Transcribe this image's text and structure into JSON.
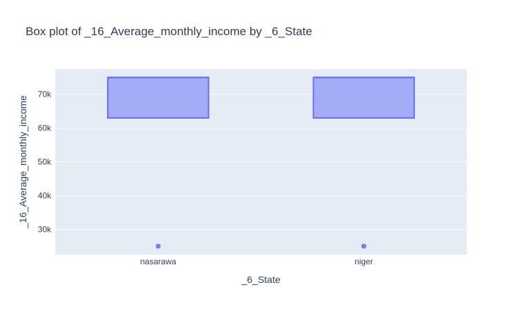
{
  "chart_data": {
    "type": "box",
    "title": "Box plot of _16_Average_monthly_income by _6_State",
    "xlabel": "_6_State",
    "ylabel": "_16_Average_monthly_income",
    "categories": [
      "nasarawa",
      "niger"
    ],
    "ylim": [
      22500,
      77500
    ],
    "yticks": [
      30000,
      40000,
      50000,
      60000,
      70000
    ],
    "ytick_labels": [
      "30k",
      "40k",
      "50k",
      "60k",
      "70k"
    ],
    "boxes": [
      {
        "category": "nasarawa",
        "q1": 63000,
        "median": 75000,
        "q3": 75000,
        "whisker_low": 63000,
        "whisker_high": 75000,
        "outliers": [
          25000
        ]
      },
      {
        "category": "niger",
        "q1": 63000,
        "median": 75000,
        "q3": 75000,
        "whisker_low": 63000,
        "whisker_high": 75000,
        "outliers": [
          25000
        ]
      }
    ],
    "grid": true,
    "colors": {
      "plot_bg": "#e5ecf6",
      "grid": "#ffffff",
      "box_fill": "#a3acf7",
      "box_line": "#636efa",
      "text": "#2a3f5f"
    }
  }
}
